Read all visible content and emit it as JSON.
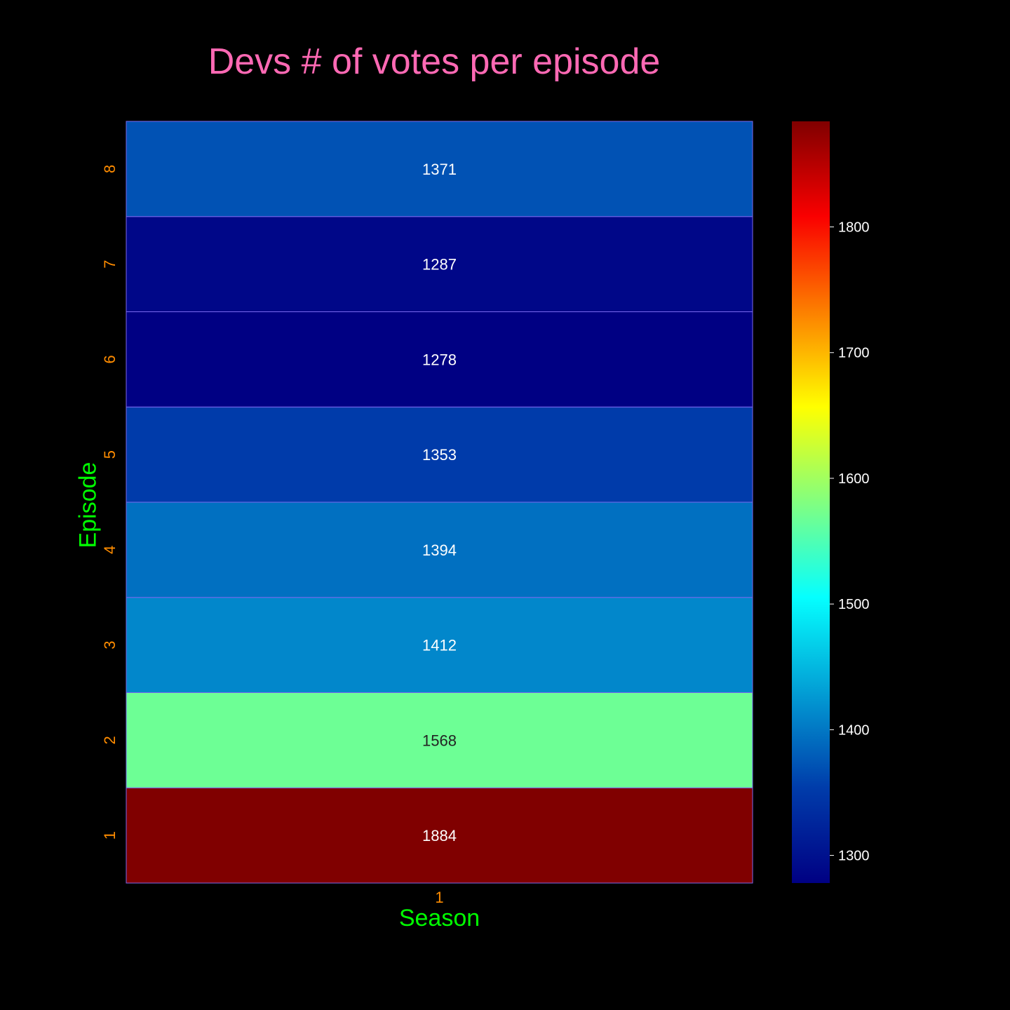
{
  "chart_data": {
    "type": "heatmap",
    "title": "Devs # of votes per episode",
    "xlabel": "Season",
    "ylabel": "Episode",
    "x_categories": [
      "1"
    ],
    "y_categories": [
      "1",
      "2",
      "3",
      "4",
      "5",
      "6",
      "7",
      "8"
    ],
    "z": [
      [
        1884
      ],
      [
        1568
      ],
      [
        1412
      ],
      [
        1394
      ],
      [
        1353
      ],
      [
        1278
      ],
      [
        1287
      ],
      [
        1371
      ]
    ],
    "colorscale": "jet",
    "zrange": [
      1278,
      1884
    ],
    "colorbar_ticks": [
      1300,
      1400,
      1500,
      1600,
      1700,
      1800
    ],
    "colors": {
      "background": "#000000",
      "title": "#ff69b4",
      "axis_title": "#00ff00",
      "tick_label": "#ff8c00",
      "colorbar_tick_label": "#ffffff",
      "cell_border": "#7b68ee"
    }
  }
}
